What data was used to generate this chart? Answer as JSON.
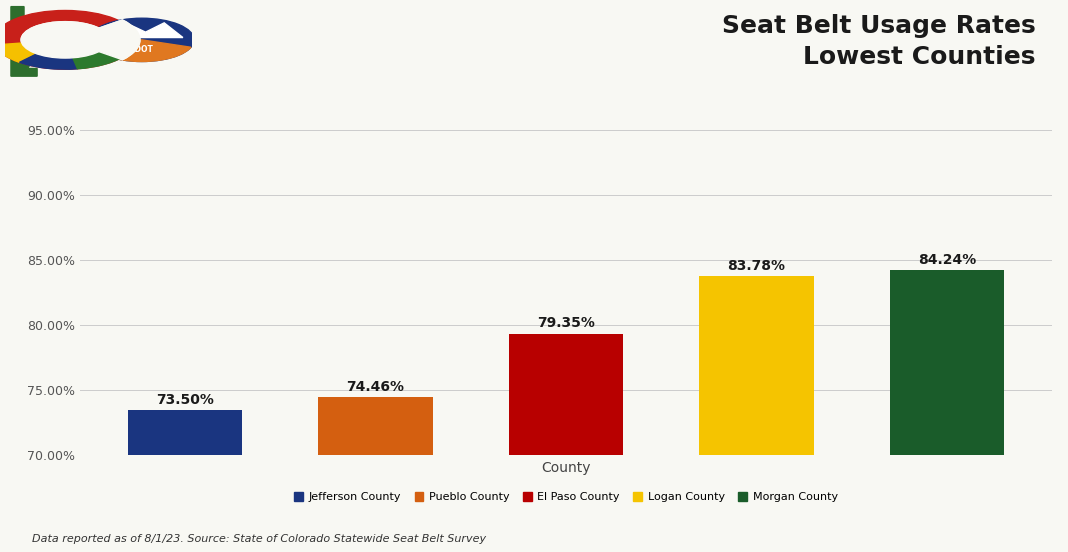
{
  "title": "Seat Belt Usage Rates\nLowest Counties",
  "xlabel": "County",
  "categories": [
    "Jefferson County",
    "Pueblo County",
    "El Paso County",
    "Logan County",
    "Morgan County"
  ],
  "values": [
    73.5,
    74.46,
    79.35,
    83.78,
    84.24
  ],
  "bar_colors": [
    "#1a3580",
    "#d45f10",
    "#b80000",
    "#f5c400",
    "#1a5c2a"
  ],
  "value_labels": [
    "73.50%",
    "74.46%",
    "79.35%",
    "83.78%",
    "84.24%"
  ],
  "ylim": [
    70.0,
    96.5
  ],
  "yticks": [
    70.0,
    75.0,
    80.0,
    85.0,
    90.0,
    95.0
  ],
  "ytick_labels": [
    "70.00%",
    "75.00%",
    "80.00%",
    "85.00%",
    "90.00%",
    "95.00%"
  ],
  "background_color": "#f8f8f3",
  "grid_color": "#cccccc",
  "title_fontsize": 18,
  "label_fontsize": 9,
  "bar_label_fontsize": 10,
  "legend_fontsize": 8,
  "source_text": "Data reported as of 8/1/23. Source: State of Colorado Statewide Seat Belt Survey",
  "header_line_color": "#e07820",
  "orange_line_thickness": 7
}
